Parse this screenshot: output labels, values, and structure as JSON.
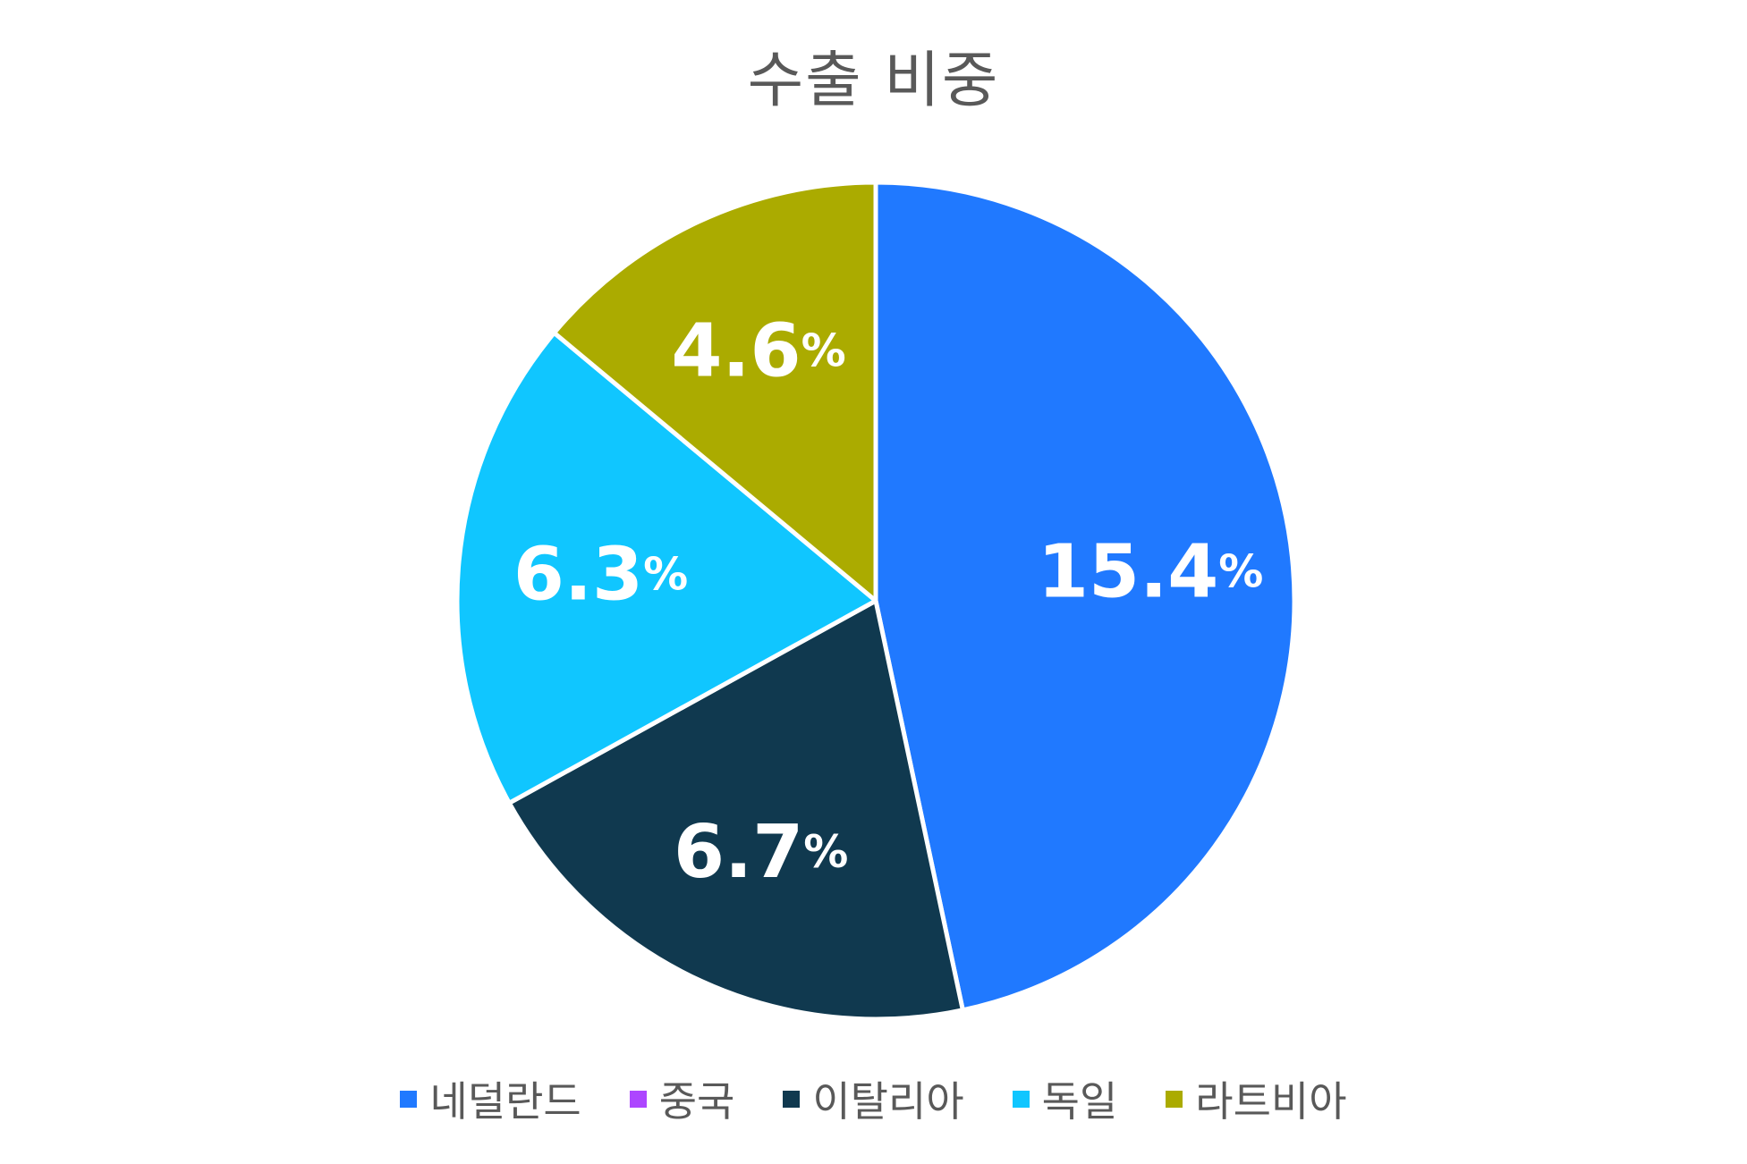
{
  "chart_data": {
    "type": "pie",
    "title": "수출 비중",
    "unit": "%",
    "categories": [
      "네덜란드",
      "중국",
      "이탈리아",
      "독일",
      "라트비아"
    ],
    "values": [
      15.4,
      0,
      6.7,
      6.3,
      4.6
    ],
    "labels": [
      "15.4%",
      "",
      "6.7%",
      "6.3%",
      "4.6%"
    ],
    "colors": [
      "#2079ff",
      "#ad46ff",
      "#10394f",
      "#10c6ff",
      "#abab00"
    ],
    "legend_position": "bottom"
  }
}
